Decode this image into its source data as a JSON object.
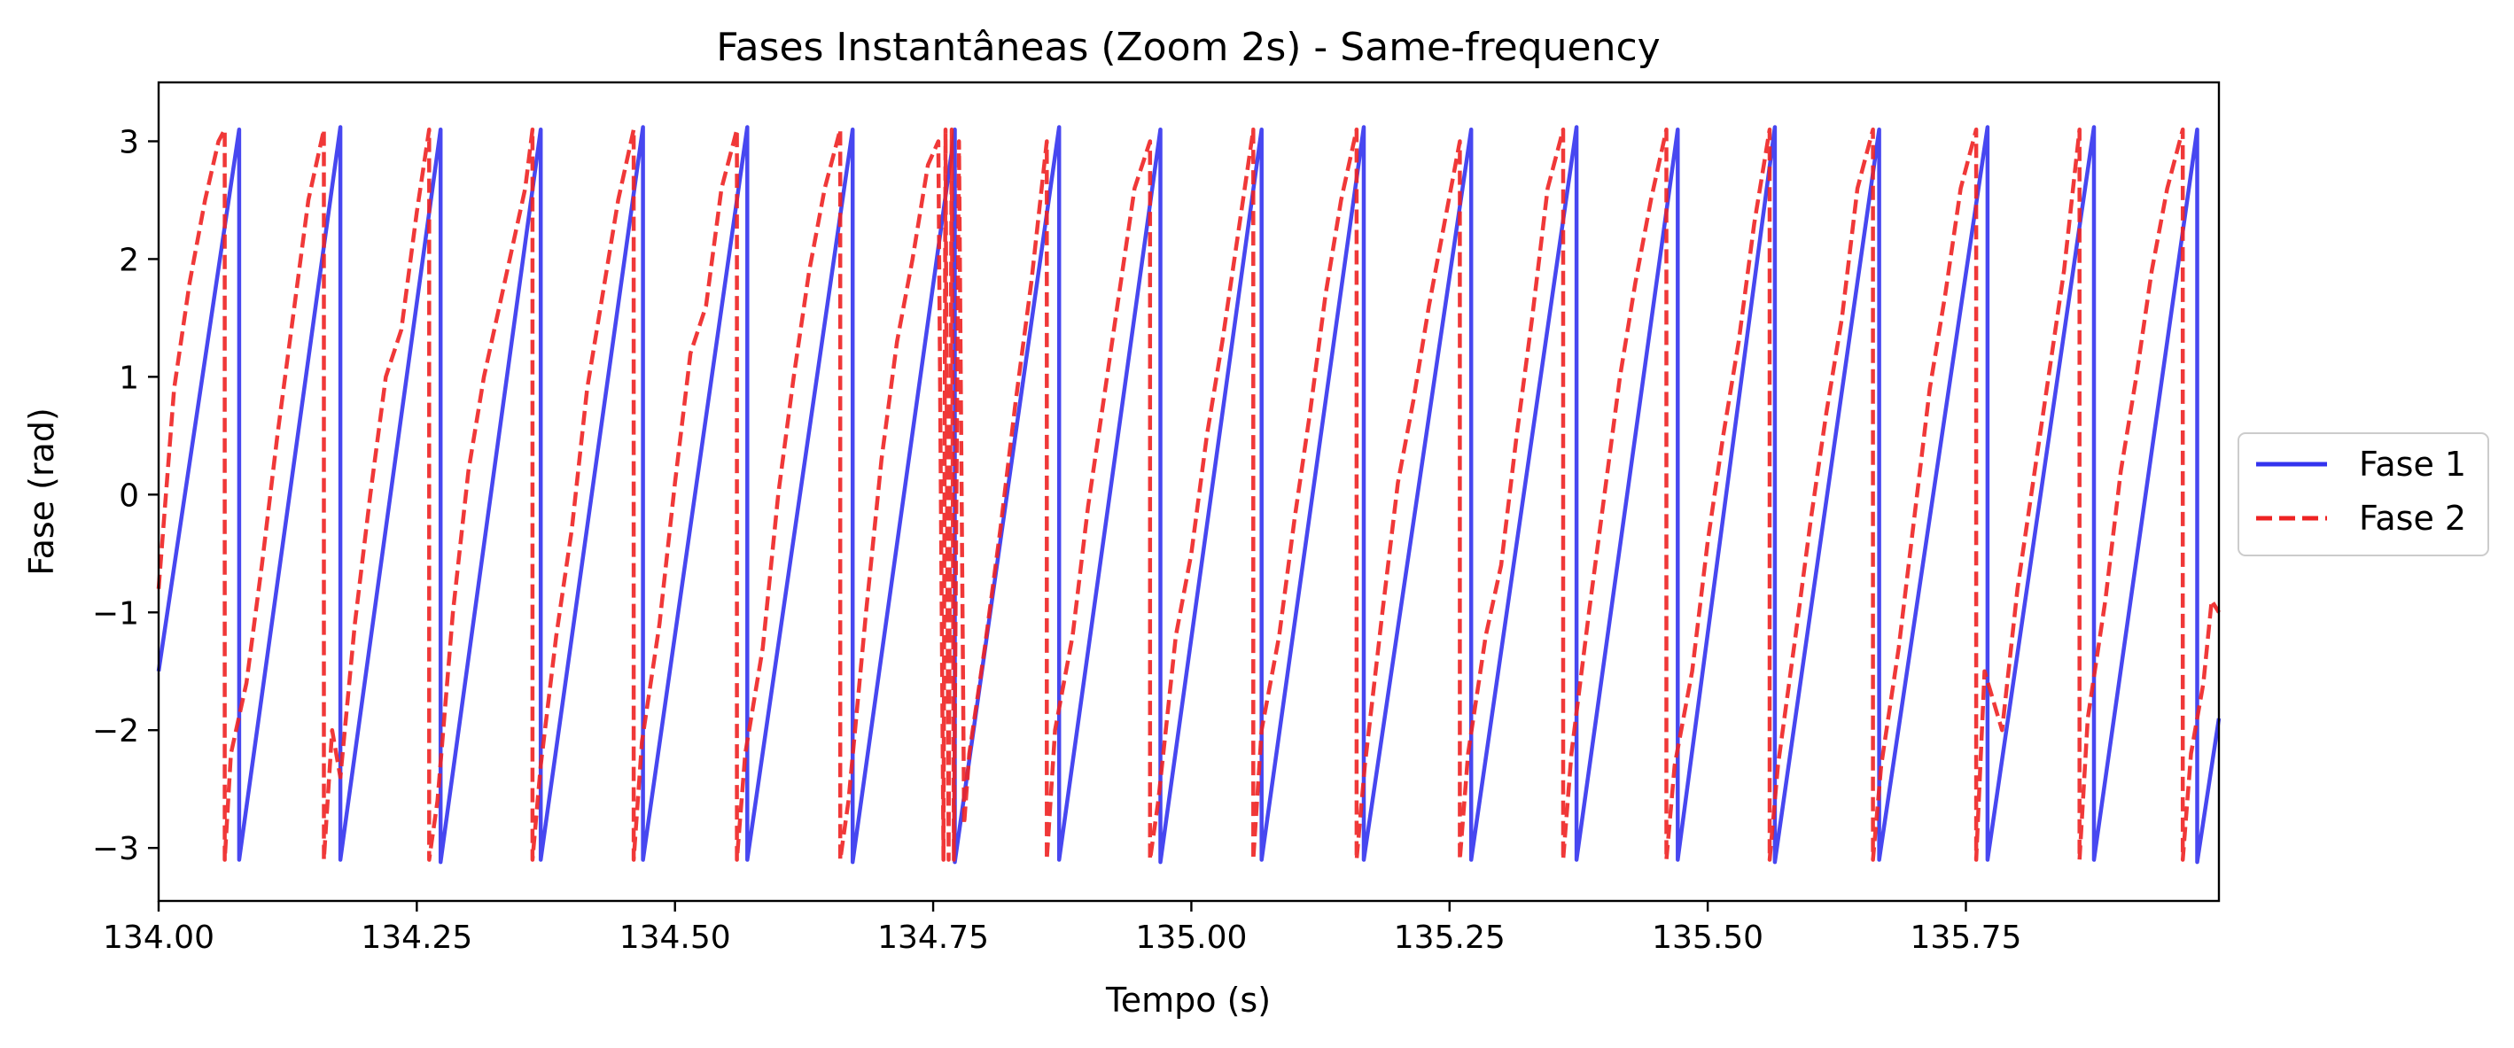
{
  "chart_data": {
    "type": "line",
    "title": "Fases Instantâneas (Zoom 2s) - Same-frequency",
    "xlabel": "Tempo (s)",
    "ylabel": "Fase (rad)",
    "xlim": [
      134.0,
      135.995
    ],
    "ylim": [
      -3.45,
      3.5
    ],
    "xticks": [
      134.0,
      134.25,
      134.5,
      134.75,
      135.0,
      135.25,
      135.5,
      135.75
    ],
    "xtick_labels": [
      "134.00",
      "134.25",
      "134.50",
      "134.75",
      "135.00",
      "135.25",
      "135.50",
      "135.75"
    ],
    "yticks": [
      -3,
      -2,
      -1,
      0,
      1,
      2,
      3
    ],
    "ytick_labels": [
      "−3",
      "−2",
      "−1",
      "0",
      "1",
      "2",
      "3"
    ],
    "grid": false,
    "legend_position": "outside-right",
    "series": [
      {
        "name": "Fase 1",
        "color": "#3333ee",
        "style": "solid",
        "x": [
          134.0,
          134.078,
          134.078,
          134.176,
          134.176,
          134.273,
          134.273,
          134.37,
          134.37,
          134.469,
          134.469,
          134.57,
          134.57,
          134.672,
          134.672,
          134.771,
          134.771,
          134.872,
          134.872,
          134.97,
          134.97,
          135.068,
          135.068,
          135.167,
          135.167,
          135.271,
          135.271,
          135.373,
          135.373,
          135.471,
          135.471,
          135.565,
          135.565,
          135.666,
          135.666,
          135.771,
          135.771,
          135.874,
          135.874,
          135.974,
          135.974,
          135.995
        ],
        "y": [
          -1.5,
          3.1,
          -3.1,
          3.12,
          -3.1,
          3.1,
          -3.12,
          3.1,
          -3.1,
          3.12,
          -3.1,
          3.12,
          -3.1,
          3.1,
          -3.12,
          3.1,
          -3.12,
          3.12,
          -3.1,
          3.1,
          -3.12,
          3.1,
          -3.1,
          3.12,
          -3.1,
          3.1,
          -3.1,
          3.12,
          -3.1,
          3.1,
          -3.1,
          3.12,
          -3.12,
          3.1,
          -3.1,
          3.12,
          -3.1,
          3.12,
          -3.1,
          3.1,
          -3.12,
          -1.9
        ]
      },
      {
        "name": "Fase 2",
        "color": "#ee2222",
        "style": "dashed",
        "x": [
          134.0,
          134.015,
          134.03,
          134.045,
          134.058,
          134.064,
          134.064,
          134.07,
          134.085,
          134.1,
          134.115,
          134.13,
          134.145,
          134.16,
          134.16,
          134.168,
          134.176,
          134.19,
          134.205,
          134.22,
          134.235,
          134.25,
          134.262,
          134.262,
          134.27,
          134.285,
          134.3,
          134.315,
          134.33,
          134.355,
          134.362,
          134.362,
          134.37,
          134.385,
          134.4,
          134.415,
          134.43,
          134.445,
          134.46,
          134.46,
          134.468,
          134.485,
          134.5,
          134.515,
          134.53,
          134.545,
          134.56,
          134.56,
          134.568,
          134.585,
          134.6,
          134.615,
          134.63,
          134.645,
          134.66,
          134.66,
          134.668,
          134.685,
          134.7,
          134.715,
          134.73,
          134.745,
          134.755,
          134.76,
          134.762,
          134.765,
          134.768,
          134.77,
          134.775,
          134.78,
          134.785,
          134.8,
          134.815,
          134.83,
          134.845,
          134.86,
          134.86,
          134.868,
          134.885,
          134.9,
          134.915,
          134.93,
          134.945,
          134.96,
          134.96,
          134.968,
          134.985,
          135.0,
          135.015,
          135.03,
          135.045,
          135.06,
          135.06,
          135.068,
          135.085,
          135.1,
          135.115,
          135.13,
          135.145,
          135.16,
          135.16,
          135.168,
          135.185,
          135.2,
          135.215,
          135.23,
          135.245,
          135.26,
          135.26,
          135.268,
          135.285,
          135.3,
          135.315,
          135.33,
          135.345,
          135.36,
          135.36,
          135.368,
          135.385,
          135.4,
          135.415,
          135.43,
          135.445,
          135.46,
          135.46,
          135.468,
          135.485,
          135.5,
          135.515,
          135.53,
          135.545,
          135.56,
          135.56,
          135.568,
          135.585,
          135.6,
          135.615,
          135.63,
          135.645,
          135.66,
          135.66,
          135.668,
          135.685,
          135.7,
          135.715,
          135.73,
          135.745,
          135.76,
          135.76,
          135.768,
          135.785,
          135.8,
          135.815,
          135.83,
          135.845,
          135.86,
          135.86,
          135.868,
          135.885,
          135.9,
          135.915,
          135.93,
          135.945,
          135.96,
          135.96,
          135.968,
          135.98,
          135.988,
          135.995
        ],
        "y": [
          -0.8,
          0.9,
          1.8,
          2.5,
          3.0,
          3.1,
          -3.1,
          -2.2,
          -1.6,
          -0.6,
          0.5,
          1.5,
          2.5,
          3.1,
          -3.1,
          -2.0,
          -2.4,
          -1.1,
          0.0,
          1.0,
          1.4,
          2.4,
          3.1,
          -3.1,
          -2.6,
          -1.0,
          0.2,
          1.0,
          1.6,
          2.6,
          3.1,
          -3.1,
          -2.3,
          -1.2,
          -0.3,
          0.9,
          1.7,
          2.5,
          3.1,
          -3.1,
          -2.1,
          -1.1,
          0.1,
          1.2,
          1.6,
          2.6,
          3.1,
          -3.1,
          -2.2,
          -1.3,
          0.0,
          1.0,
          1.9,
          2.6,
          3.1,
          -3.1,
          -2.6,
          -1.0,
          0.3,
          1.3,
          2.0,
          2.8,
          3.0,
          -3.1,
          3.1,
          -3.1,
          3.1,
          -3.1,
          3.0,
          -2.8,
          -2.2,
          -1.3,
          -0.3,
          0.8,
          1.8,
          3.0,
          -3.1,
          -2.0,
          -1.2,
          -0.1,
          0.8,
          1.7,
          2.6,
          3.0,
          -3.1,
          -2.6,
          -1.2,
          -0.5,
          0.5,
          1.3,
          2.2,
          3.1,
          -3.1,
          -2.0,
          -1.2,
          -0.2,
          0.7,
          1.7,
          2.5,
          3.1,
          -3.1,
          -2.3,
          -1.0,
          0.1,
          0.8,
          1.6,
          2.3,
          3.0,
          -3.1,
          -2.2,
          -1.2,
          -0.6,
          0.5,
          1.5,
          2.6,
          3.1,
          -3.1,
          -2.2,
          -1.0,
          0.0,
          1.0,
          1.8,
          2.5,
          3.1,
          -3.1,
          -2.3,
          -1.5,
          -0.4,
          0.5,
          1.3,
          2.3,
          3.1,
          -3.1,
          -2.3,
          -1.2,
          -0.2,
          0.7,
          1.5,
          2.6,
          3.1,
          -3.1,
          -2.3,
          -1.3,
          -0.2,
          0.9,
          1.7,
          2.6,
          3.1,
          -3.1,
          -1.5,
          -2.0,
          -0.8,
          0.1,
          1.0,
          1.9,
          3.1,
          -3.1,
          -1.9,
          -0.9,
          0.2,
          1.0,
          1.9,
          2.6,
          3.1,
          -3.1,
          -2.2,
          -1.6,
          -0.9,
          -1.0
        ]
      }
    ]
  }
}
